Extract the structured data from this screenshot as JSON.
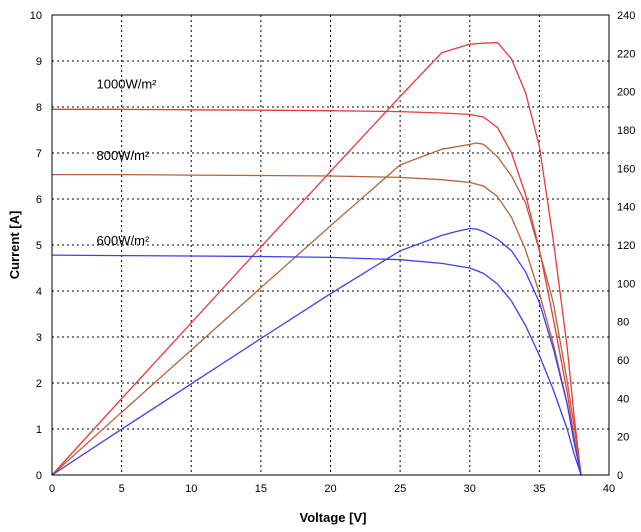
{
  "chart_data": {
    "type": "line",
    "xlabel": "Voltage [V]",
    "ylabel": "Current [A]",
    "y2label": "",
    "xlim": [
      0,
      40
    ],
    "ylim": [
      0,
      10
    ],
    "y2lim": [
      0,
      240
    ],
    "xticks": [
      "0",
      "5",
      "10",
      "15",
      "20",
      "25",
      "30",
      "35",
      "40"
    ],
    "yticks": [
      "0",
      "1",
      "2",
      "3",
      "4",
      "5",
      "6",
      "7",
      "8",
      "9",
      "10"
    ],
    "y2ticks": [
      "0",
      "20",
      "40",
      "60",
      "80",
      "100",
      "120",
      "140",
      "160",
      "180",
      "200",
      "220",
      "240"
    ],
    "grid": true,
    "annotations": [
      {
        "text": "1000W/m²",
        "x": 3.2,
        "y": 8.4
      },
      {
        "text": "800W/m²",
        "x": 3.2,
        "y": 6.85
      },
      {
        "text": "600W/m²",
        "x": 3.2,
        "y": 5.0
      }
    ],
    "series": [
      {
        "color": "#e8393c",
        "axis": "left",
        "kind": "current",
        "x": [
          0,
          5,
          10,
          15,
          20,
          25,
          28,
          30,
          31,
          32,
          33,
          34,
          35,
          36,
          37,
          37.5,
          38
        ],
        "y": [
          7.95,
          7.95,
          7.94,
          7.93,
          7.92,
          7.9,
          7.87,
          7.84,
          7.78,
          7.55,
          7.0,
          6.1,
          4.9,
          3.4,
          1.8,
          0.8,
          0
        ]
      },
      {
        "color": "#e8393c",
        "axis": "right",
        "kind": "power",
        "x": [
          0,
          5,
          10,
          15,
          20,
          25,
          28,
          30,
          31,
          32,
          33,
          34,
          35,
          36,
          37,
          37.5,
          38
        ],
        "y": [
          0,
          39.8,
          79.4,
          119,
          158.4,
          197.5,
          220.4,
          224.8,
          225.3,
          225.6,
          217,
          199.5,
          171.5,
          122.4,
          66.6,
          30,
          0
        ]
      },
      {
        "color": "#b5623b",
        "axis": "left",
        "kind": "current",
        "x": [
          0,
          5,
          10,
          15,
          20,
          25,
          28,
          30,
          31,
          32,
          33,
          34,
          35,
          36,
          37,
          37.5,
          38
        ],
        "y": [
          6.53,
          6.53,
          6.52,
          6.51,
          6.5,
          6.47,
          6.42,
          6.36,
          6.28,
          6.05,
          5.6,
          4.9,
          3.95,
          2.85,
          1.55,
          0.7,
          0
        ]
      },
      {
        "color": "#b5623b",
        "axis": "right",
        "kind": "power",
        "x": [
          0,
          5,
          10,
          15,
          20,
          25,
          28,
          30,
          30.5,
          31,
          32,
          33,
          34,
          35,
          36,
          37,
          37.5,
          38
        ],
        "y": [
          0,
          32.7,
          65.2,
          97.7,
          130,
          161.8,
          170,
          172.5,
          173.2,
          172.5,
          166,
          156,
          142,
          117,
          90,
          49,
          25,
          0
        ]
      },
      {
        "color": "#3f3ff0",
        "axis": "left",
        "kind": "current",
        "x": [
          0,
          5,
          10,
          15,
          20,
          25,
          28,
          30,
          31,
          32,
          33,
          34,
          35,
          36,
          37,
          37.5,
          38
        ],
        "y": [
          4.78,
          4.77,
          4.76,
          4.75,
          4.73,
          4.68,
          4.6,
          4.5,
          4.38,
          4.15,
          3.78,
          3.25,
          2.6,
          1.85,
          1.0,
          0.45,
          0
        ]
      },
      {
        "color": "#3f3ff0",
        "axis": "right",
        "kind": "power",
        "x": [
          0,
          5,
          10,
          15,
          20,
          25,
          28,
          29,
          30,
          30.5,
          31,
          32,
          33,
          34,
          35,
          36,
          37,
          37.5,
          38
        ],
        "y": [
          0,
          23.9,
          47.6,
          71.2,
          94.6,
          117,
          125,
          127,
          128.6,
          128.3,
          127,
          123,
          117,
          106,
          90,
          66,
          37,
          17,
          0
        ]
      }
    ]
  }
}
